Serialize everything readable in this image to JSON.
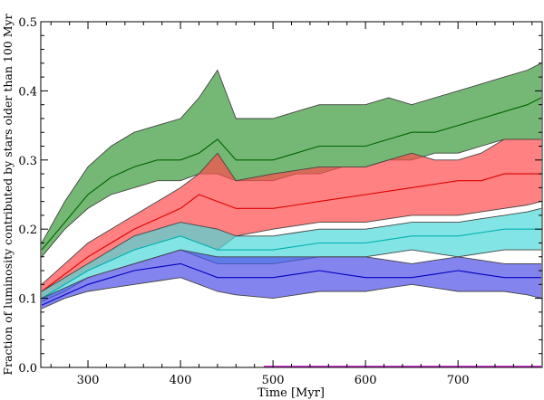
{
  "chart_data": {
    "type": "area",
    "title": "",
    "xlabel": "Time [Myr]",
    "ylabel": "Fraction of luminosity contributed by stars older than 100 Myr",
    "xlim": [
      249,
      791
    ],
    "ylim": [
      0.0,
      0.5
    ],
    "xticks": [
      "300",
      "400",
      "500",
      "600",
      "700"
    ],
    "xtick_values": [
      300,
      400,
      500,
      600,
      700
    ],
    "yticks": [
      "0.0",
      "0.1",
      "0.2",
      "0.3",
      "0.4",
      "0.5"
    ],
    "ytick_values": [
      0.0,
      0.1,
      0.2,
      0.3,
      0.4,
      0.5
    ],
    "grid": false,
    "x": [
      250,
      275,
      300,
      325,
      350,
      375,
      400,
      420,
      440,
      460,
      500,
      525,
      550,
      575,
      600,
      625,
      650,
      675,
      700,
      725,
      750,
      775,
      790
    ],
    "series": [
      {
        "name": "green",
        "color": "#3a9a3a",
        "line": "#006400",
        "median": [
          0.17,
          0.21,
          0.25,
          0.275,
          0.29,
          0.3,
          0.3,
          0.31,
          0.33,
          0.3,
          0.3,
          0.31,
          0.32,
          0.32,
          0.32,
          0.33,
          0.34,
          0.34,
          0.35,
          0.36,
          0.37,
          0.38,
          0.39
        ],
        "upper": [
          0.18,
          0.24,
          0.29,
          0.32,
          0.34,
          0.35,
          0.36,
          0.39,
          0.43,
          0.36,
          0.36,
          0.37,
          0.38,
          0.38,
          0.38,
          0.39,
          0.38,
          0.39,
          0.4,
          0.41,
          0.42,
          0.43,
          0.44
        ],
        "lower": [
          0.16,
          0.2,
          0.23,
          0.25,
          0.26,
          0.27,
          0.27,
          0.28,
          0.28,
          0.27,
          0.27,
          0.28,
          0.28,
          0.29,
          0.29,
          0.3,
          0.3,
          0.31,
          0.31,
          0.32,
          0.33,
          0.33,
          0.33
        ]
      },
      {
        "name": "red",
        "color": "#ff4c4c",
        "line": "#dd0000",
        "median": [
          0.11,
          0.135,
          0.16,
          0.18,
          0.2,
          0.215,
          0.23,
          0.25,
          0.24,
          0.23,
          0.23,
          0.235,
          0.24,
          0.245,
          0.25,
          0.255,
          0.26,
          0.265,
          0.27,
          0.27,
          0.28,
          0.28,
          0.28
        ],
        "upper": [
          0.12,
          0.15,
          0.18,
          0.2,
          0.22,
          0.24,
          0.26,
          0.28,
          0.31,
          0.27,
          0.28,
          0.285,
          0.29,
          0.29,
          0.29,
          0.3,
          0.31,
          0.3,
          0.3,
          0.31,
          0.33,
          0.33,
          0.33
        ],
        "lower": [
          0.1,
          0.12,
          0.14,
          0.155,
          0.17,
          0.18,
          0.19,
          0.18,
          0.17,
          0.19,
          0.2,
          0.205,
          0.21,
          0.21,
          0.21,
          0.215,
          0.22,
          0.22,
          0.22,
          0.225,
          0.23,
          0.235,
          0.24
        ]
      },
      {
        "name": "cyan",
        "color": "#4dd8d8",
        "line": "#00b0b0",
        "median": [
          0.1,
          0.12,
          0.14,
          0.155,
          0.17,
          0.18,
          0.19,
          0.18,
          0.17,
          0.17,
          0.17,
          0.175,
          0.18,
          0.18,
          0.18,
          0.185,
          0.19,
          0.19,
          0.19,
          0.195,
          0.2,
          0.2,
          0.2
        ],
        "upper": [
          0.11,
          0.13,
          0.15,
          0.17,
          0.19,
          0.2,
          0.21,
          0.205,
          0.2,
          0.19,
          0.19,
          0.195,
          0.2,
          0.2,
          0.2,
          0.205,
          0.21,
          0.21,
          0.21,
          0.215,
          0.22,
          0.225,
          0.23
        ],
        "lower": [
          0.095,
          0.11,
          0.13,
          0.14,
          0.15,
          0.16,
          0.17,
          0.16,
          0.15,
          0.15,
          0.15,
          0.155,
          0.16,
          0.16,
          0.16,
          0.165,
          0.17,
          0.165,
          0.16,
          0.165,
          0.17,
          0.17,
          0.17
        ]
      },
      {
        "name": "blue",
        "color": "#5050e8",
        "line": "#0000c0",
        "median": [
          0.09,
          0.105,
          0.12,
          0.13,
          0.14,
          0.145,
          0.15,
          0.14,
          0.13,
          0.13,
          0.13,
          0.135,
          0.14,
          0.135,
          0.13,
          0.13,
          0.13,
          0.135,
          0.14,
          0.135,
          0.13,
          0.13,
          0.13
        ],
        "upper": [
          0.1,
          0.115,
          0.13,
          0.14,
          0.15,
          0.16,
          0.17,
          0.165,
          0.16,
          0.16,
          0.16,
          0.16,
          0.16,
          0.16,
          0.16,
          0.155,
          0.15,
          0.155,
          0.16,
          0.155,
          0.15,
          0.15,
          0.15
        ],
        "lower": [
          0.085,
          0.1,
          0.11,
          0.115,
          0.12,
          0.125,
          0.13,
          0.12,
          0.11,
          0.105,
          0.1,
          0.105,
          0.11,
          0.11,
          0.11,
          0.115,
          0.12,
          0.115,
          0.11,
          0.11,
          0.11,
          0.105,
          0.1
        ]
      },
      {
        "name": "magenta",
        "color": "#cc33cc",
        "line": "#cc33cc",
        "x_range": [
          490,
          790
        ],
        "value": 0.0
      }
    ]
  }
}
